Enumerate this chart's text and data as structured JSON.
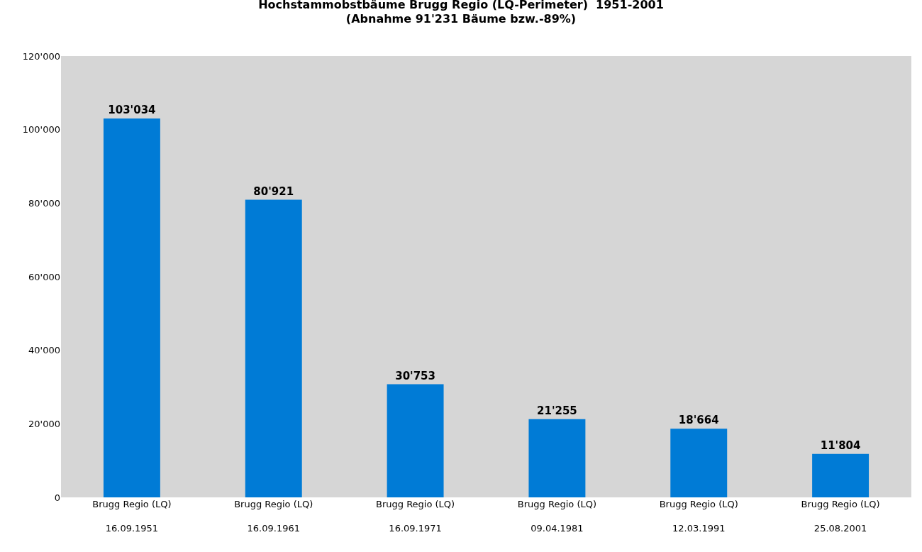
{
  "chart_data": {
    "type": "bar",
    "title": "Hochstammobstbäume Brugg Regio (LQ-Perimeter)  1951-2001\n(Abnahme 91'231 Bäume bzw.-89%)",
    "categories": [
      "Brugg Regio (LQ)\n\n16.09.1951",
      "Brugg Regio (LQ)\n\n16.09.1961",
      "Brugg Regio (LQ)\n\n16.09.1971",
      "Brugg Regio (LQ)\n\n09.04.1981",
      "Brugg Regio (LQ)\n\n12.03.1991",
      "Brugg Regio (LQ)\n\n25.08.2001"
    ],
    "values": [
      103034,
      80921,
      30753,
      21255,
      18664,
      11804
    ],
    "value_labels": [
      "103'034",
      "80'921",
      "30'753",
      "21'255",
      "18'664",
      "11'804"
    ],
    "color": "#007bd6",
    "ylim": [
      0,
      120000
    ],
    "yticks": [
      {
        "value": 0,
        "label": "0"
      },
      {
        "value": 20000,
        "label": "20'000"
      },
      {
        "value": 40000,
        "label": "40'000"
      },
      {
        "value": 60000,
        "label": "60'000"
      },
      {
        "value": 80000,
        "label": "80'000"
      },
      {
        "value": 100000,
        "label": "100'000"
      },
      {
        "value": 120000,
        "label": "120'000"
      }
    ],
    "grid": false,
    "legend": false
  }
}
